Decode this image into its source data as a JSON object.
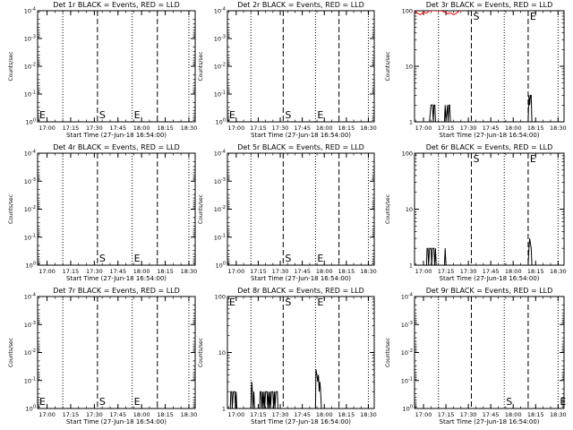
{
  "window": {
    "title": ""
  },
  "x_axis": {
    "tick_labels": [
      "17:00",
      "17:15",
      "17:30",
      "17:45",
      "18:00",
      "18:15",
      "18:30"
    ],
    "label": "Start Time (27-Jun-18 16:54:00)",
    "range_minutes": [
      0,
      100
    ]
  },
  "markers": {
    "dotted_lines_minutes": [
      16,
      60,
      96
    ],
    "dashed_lines_minutes": [
      38,
      76
    ]
  },
  "chart_data": [
    {
      "type": "line",
      "title": "Det 1r BLACK = Events, RED = LLD",
      "ylabel": "Counts/sec",
      "yscale": "log",
      "ylim": [
        1,
        0.0001
      ],
      "ytick_labels": [
        "10^-4",
        "10^-3",
        "10^-2",
        "10^-1",
        "10^0"
      ],
      "annotations": [
        {
          "text": "E",
          "x_minutes": 0
        },
        {
          "text": "S",
          "x_minutes": 38
        },
        {
          "text": "E",
          "x_minutes": 60
        }
      ],
      "series": []
    },
    {
      "type": "line",
      "title": "Det 2r BLACK = Events, RED = LLD",
      "ylabel": "Counts/sec",
      "yscale": "log",
      "ylim": [
        1,
        0.0001
      ],
      "ytick_labels": [
        "10^-4",
        "10^-3",
        "10^-2",
        "10^-1",
        "10^0"
      ],
      "annotations": [
        {
          "text": "E",
          "x_minutes": 0
        },
        {
          "text": "S",
          "x_minutes": 38
        },
        {
          "text": "E",
          "x_minutes": 60
        }
      ],
      "series": []
    },
    {
      "type": "line",
      "title": "Det 3r BLACK = Events, RED = LLD",
      "ylabel": "Counts/sec",
      "yscale": "log",
      "ylim": [
        1,
        100
      ],
      "ytick_labels": [
        "1",
        "10",
        "100"
      ],
      "annotations": [
        {
          "text": "S",
          "x_minutes": 38
        },
        {
          "text": "E",
          "x_minutes": 76
        }
      ],
      "series": [
        {
          "color": "#000000",
          "points": [
            [
              0,
              1
            ],
            [
              10,
              1
            ],
            [
              11,
              2
            ],
            [
              12,
              2
            ],
            [
              12.6,
              1
            ],
            [
              13,
              2
            ],
            [
              13.6,
              2
            ],
            [
              14,
              1
            ],
            [
              20,
              1
            ],
            [
              20.5,
              2
            ],
            [
              21,
              1
            ],
            [
              22,
              2
            ],
            [
              22.5,
              1
            ],
            [
              23,
              2
            ],
            [
              23.5,
              2
            ],
            [
              24,
              1
            ],
            [
              76,
              1
            ],
            [
              76.5,
              3
            ],
            [
              77,
              2
            ],
            [
              77.5,
              3
            ],
            [
              78,
              3
            ],
            [
              78.5,
              1
            ],
            [
              100,
              1
            ]
          ]
        },
        {
          "color": "#ff0000",
          "points": [
            [
              0,
              100
            ],
            [
              2,
              90
            ],
            [
              4,
              85
            ],
            [
              6,
              95
            ],
            [
              8,
              90
            ],
            [
              10,
              100
            ],
            [
              12,
              100
            ],
            [
              18,
              100
            ],
            [
              20,
              95
            ],
            [
              22,
              88
            ],
            [
              24,
              92
            ],
            [
              26,
              85
            ],
            [
              28,
              90
            ],
            [
              30,
              100
            ],
            [
              32,
              100
            ]
          ]
        }
      ]
    },
    {
      "type": "line",
      "title": "Det 4r BLACK = Events, RED = LLD",
      "ylabel": "Counts/sec",
      "yscale": "log",
      "ylim": [
        1,
        0.0001
      ],
      "ytick_labels": [
        "10^-4",
        "10^-3",
        "10^-2",
        "10^-1",
        "10^0"
      ],
      "annotations": [
        {
          "text": "S",
          "x_minutes": 38
        },
        {
          "text": "E",
          "x_minutes": 60
        }
      ],
      "series": []
    },
    {
      "type": "line",
      "title": "Det 5r BLACK = Events, RED = LLD",
      "ylabel": "Counts/sec",
      "yscale": "log",
      "ylim": [
        1,
        0.0001
      ],
      "ytick_labels": [
        "10^-4",
        "10^-3",
        "10^-2",
        "10^-1",
        "10^0"
      ],
      "annotations": [
        {
          "text": "S",
          "x_minutes": 38
        },
        {
          "text": "E",
          "x_minutes": 60
        }
      ],
      "series": []
    },
    {
      "type": "line",
      "title": "Det 6r BLACK = Events, RED = LLD",
      "ylabel": "Counts/sec",
      "yscale": "log",
      "ylim": [
        1,
        100
      ],
      "ytick_labels": [
        "1",
        "10",
        "100"
      ],
      "annotations": [
        {
          "text": "S",
          "x_minutes": 38
        },
        {
          "text": "E",
          "x_minutes": 76
        }
      ],
      "series": [
        {
          "color": "#000000",
          "points": [
            [
              0,
              1
            ],
            [
              8,
              1
            ],
            [
              8.4,
              2
            ],
            [
              9,
              2
            ],
            [
              9.4,
              1
            ],
            [
              10,
              2
            ],
            [
              11,
              2
            ],
            [
              11.5,
              1
            ],
            [
              12,
              2
            ],
            [
              13,
              2
            ],
            [
              13.5,
              1
            ],
            [
              14,
              2
            ],
            [
              14.5,
              1
            ],
            [
              20,
              1
            ],
            [
              20.5,
              2
            ],
            [
              21,
              1
            ],
            [
              76,
              1
            ],
            [
              76.5,
              2
            ],
            [
              77,
              3
            ],
            [
              78,
              2
            ],
            [
              78.5,
              1
            ],
            [
              100,
              1
            ]
          ]
        }
      ]
    },
    {
      "type": "line",
      "title": "Det 7r BLACK = Events, RED = LLD",
      "ylabel": "Counts/sec",
      "yscale": "log",
      "ylim": [
        1,
        0.0001
      ],
      "ytick_labels": [
        "10^-4",
        "10^-3",
        "10^-2",
        "10^-1",
        "10^0"
      ],
      "annotations": [
        {
          "text": "E",
          "x_minutes": 0
        },
        {
          "text": "S",
          "x_minutes": 38
        },
        {
          "text": "E",
          "x_minutes": 60
        }
      ],
      "series": []
    },
    {
      "type": "line",
      "title": "Det 8r BLACK = Events, RED = LLD",
      "ylabel": "Counts/sec",
      "yscale": "log",
      "ylim": [
        1,
        100
      ],
      "ytick_labels": [
        "1",
        "10",
        "100"
      ],
      "annotations": [
        {
          "text": "E",
          "x_minutes": 0
        },
        {
          "text": "S",
          "x_minutes": 38
        },
        {
          "text": "E",
          "x_minutes": 60
        }
      ],
      "series": [
        {
          "color": "#000000",
          "points": [
            [
              0,
              1
            ],
            [
              2,
              1
            ],
            [
              2.3,
              2
            ],
            [
              3,
              2
            ],
            [
              3.3,
              1
            ],
            [
              4,
              2
            ],
            [
              5,
              2
            ],
            [
              5.5,
              1
            ],
            [
              6,
              2
            ],
            [
              6.4,
              1
            ],
            [
              16,
              1
            ],
            [
              16.3,
              2
            ],
            [
              16.6,
              3
            ],
            [
              17,
              2
            ],
            [
              17.4,
              1
            ],
            [
              18,
              2
            ],
            [
              18.5,
              1
            ],
            [
              22,
              1
            ],
            [
              22.3,
              2
            ],
            [
              23,
              2
            ],
            [
              23.4,
              1
            ],
            [
              24,
              2
            ],
            [
              24.4,
              1
            ],
            [
              25,
              2
            ],
            [
              25.4,
              1
            ],
            [
              26,
              2
            ],
            [
              27,
              2
            ],
            [
              27.4,
              1
            ],
            [
              28,
              2
            ],
            [
              28.4,
              1
            ],
            [
              29,
              2
            ],
            [
              29.4,
              1
            ],
            [
              30,
              2
            ],
            [
              31,
              2
            ],
            [
              31.4,
              1
            ],
            [
              32,
              2
            ],
            [
              32.4,
              1
            ],
            [
              33,
              2
            ],
            [
              34,
              2
            ],
            [
              34.4,
              1
            ],
            [
              60,
              1
            ],
            [
              60.3,
              5
            ],
            [
              61,
              4
            ],
            [
              61.5,
              3
            ],
            [
              62,
              4
            ],
            [
              62.5,
              2
            ],
            [
              63,
              3
            ],
            [
              63.5,
              2
            ],
            [
              64,
              1
            ],
            [
              100,
              1
            ]
          ]
        }
      ]
    },
    {
      "type": "line",
      "title": "Det 9r BLACK = Events, RED = LLD",
      "ylabel": "Counts/sec",
      "yscale": "log",
      "ylim": [
        1,
        0.0001
      ],
      "ytick_labels": [
        "10^-4",
        "10^-3",
        "10^-2",
        "10^-1",
        "10^0"
      ],
      "annotations": [
        {
          "text": "S",
          "x_minutes": 60
        },
        {
          "text": "E",
          "x_minutes": 96
        }
      ],
      "series": []
    }
  ]
}
